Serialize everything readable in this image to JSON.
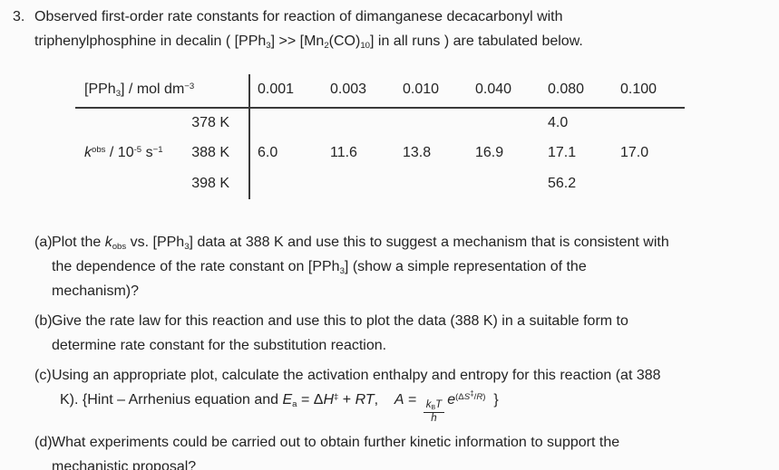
{
  "page": {
    "background_color": "#fbfbfb",
    "text_color": "#242424",
    "rule_color": "#3a3a3a"
  },
  "problem": {
    "number": "3.",
    "intro_lines": [
      [
        {
          "t": "Observed first-order rate constants for reaction of dimanganese decacarbonyl with"
        }
      ],
      [
        {
          "t": "triphenylphosphine in decalin ( [PPh"
        },
        {
          "sub": "3"
        },
        {
          "t": "] >> [Mn"
        },
        {
          "sub": "2"
        },
        {
          "t": "(CO)"
        },
        {
          "sub": "10"
        },
        {
          "t": "] in all runs ) are tabulated below."
        }
      ]
    ]
  },
  "table": {
    "header": {
      "label_segments": [
        {
          "t": "[PPh"
        },
        {
          "sub": "3"
        },
        {
          "t": "] / mol dm"
        },
        {
          "sup": "−3"
        }
      ],
      "concentrations": [
        "0.001",
        "0.003",
        "0.010",
        "0.040",
        "0.080",
        "0.100"
      ]
    },
    "rate_label_segments": [
      {
        "i": "k"
      },
      {
        "sup": "obs"
      },
      {
        "t": " / 10"
      },
      {
        "sup": "-5"
      },
      {
        "t": " s"
      },
      {
        "sup": "−1"
      }
    ],
    "rows": [
      {
        "temp": "378 K",
        "values": [
          "",
          "",
          "",
          "",
          "4.0",
          ""
        ]
      },
      {
        "temp": "388 K",
        "values": [
          "6.0",
          "11.6",
          "13.8",
          "16.9",
          "17.1",
          "17.0"
        ]
      },
      {
        "temp": "398 K",
        "values": [
          "",
          "",
          "",
          "",
          "56.2",
          ""
        ]
      }
    ]
  },
  "questions": [
    {
      "marker": "(a)",
      "lines": [
        [
          {
            "t": "Plot the "
          },
          {
            "i": "k"
          },
          {
            "sub": "obs"
          },
          {
            "t": " vs. [PPh"
          },
          {
            "sub": "3"
          },
          {
            "t": "] data at 388 K and use this to suggest a mechanism that is consistent with"
          }
        ],
        [
          {
            "t": "the dependence of the rate constant on [PPh"
          },
          {
            "sub": "3"
          },
          {
            "t": "] (show a simple representation of the"
          }
        ],
        [
          {
            "t": "mechanism)?"
          }
        ]
      ]
    },
    {
      "marker": "(b)",
      "lines": [
        [
          {
            "t": "Give the rate law for this reaction and use this to plot the data (388 K) in a suitable form to"
          }
        ],
        [
          {
            "t": "determine rate constant for the substitution reaction."
          }
        ]
      ]
    },
    {
      "marker": "(c)",
      "lines": [
        [
          {
            "t": "Using an appropriate plot, calculate the activation enthalpy and entropy for this reaction (at 388"
          }
        ],
        [
          {
            "t": "K). {Hint – Arrhenius equation and "
          },
          {
            "i": "E"
          },
          {
            "sub": "a"
          },
          {
            "t": " = Δ"
          },
          {
            "i": "H"
          },
          {
            "sup": "‡"
          },
          {
            "t": " + "
          },
          {
            "i": "RT"
          },
          {
            "t": ",    "
          },
          {
            "i": "A"
          },
          {
            "t": " = "
          },
          {
            "frac": {
              "num": [
                {
                  "i": "k"
                },
                {
                  "sub": "B"
                },
                {
                  "i": "T"
                }
              ],
              "den": [
                {
                  "i": "h"
                }
              ]
            }
          },
          {
            "i": "e"
          },
          {
            "sup": [
              {
                "t": "(Δ"
              },
              {
                "i": "S"
              },
              {
                "sup": "‡"
              },
              {
                "t": "/"
              },
              {
                "i": "R"
              },
              {
                "t": ")"
              }
            ]
          },
          {
            "t": "  }"
          }
        ]
      ]
    },
    {
      "marker": "(d)",
      "lines": [
        [
          {
            "t": "What experiments could be carried out to obtain further kinetic information to support the"
          }
        ],
        [
          {
            "t": "mechanistic proposal?"
          }
        ]
      ]
    }
  ]
}
